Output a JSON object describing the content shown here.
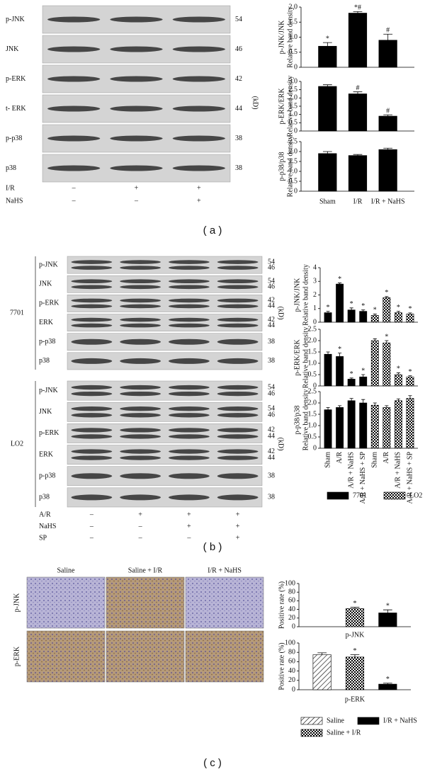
{
  "panels": {
    "a": {
      "caption": "( a )",
      "kd_unit": "(kD)",
      "rows": [
        {
          "name": "p-JNK",
          "kd": [
            "54"
          ]
        },
        {
          "name": "JNK",
          "kd": [
            "46"
          ]
        },
        {
          "name": "p-ERK",
          "kd": [
            "42"
          ]
        },
        {
          "name": "t- ERK",
          "kd": [
            "44"
          ]
        },
        {
          "name": "p-p38",
          "kd": [
            "38"
          ]
        },
        {
          "name": "p38",
          "kd": [
            "38"
          ]
        }
      ],
      "treatments": [
        {
          "name": "I/R",
          "signs": [
            "–",
            "+",
            "+"
          ]
        },
        {
          "name": "NaHS",
          "signs": [
            "–",
            "–",
            "+"
          ]
        }
      ]
    },
    "b": {
      "caption": "( b )",
      "kd_unit": "(kD)",
      "groups": [
        {
          "name": "7701",
          "rows": [
            {
              "name": "p-JNK",
              "kd": [
                "54",
                "46"
              ]
            },
            {
              "name": "JNK",
              "kd": [
                "54",
                "46"
              ]
            },
            {
              "name": "p-ERK",
              "kd": [
                "42",
                "44"
              ]
            },
            {
              "name": "ERK",
              "kd": [
                "42",
                "44"
              ]
            },
            {
              "name": "p-p38",
              "kd": [
                "38"
              ]
            },
            {
              "name": "p38",
              "kd": [
                "38"
              ]
            }
          ]
        },
        {
          "name": "LO2",
          "rows": [
            {
              "name": "p-JNK",
              "kd": [
                "54",
                "46"
              ]
            },
            {
              "name": "JNK",
              "kd": [
                "54",
                "46"
              ]
            },
            {
              "name": "p-ERK",
              "kd": [
                "42",
                "44"
              ]
            },
            {
              "name": "ERK",
              "kd": [
                "42",
                "44"
              ]
            },
            {
              "name": "p-p38",
              "kd": [
                "38"
              ]
            },
            {
              "name": "p38",
              "kd": [
                "38"
              ]
            }
          ]
        }
      ],
      "treatments": [
        {
          "name": "A/R",
          "signs": [
            "–",
            "+",
            "+",
            "+"
          ]
        },
        {
          "name": "NaHS",
          "signs": [
            "–",
            "–",
            "+",
            "+"
          ]
        },
        {
          "name": "SP",
          "signs": [
            "–",
            "–",
            "–",
            "+"
          ]
        }
      ]
    },
    "c": {
      "caption": "( c )",
      "columns": [
        "Saline",
        "Saline + I/R",
        "I/R + NaHS"
      ],
      "rows": [
        "p-JNK",
        "p-ERK"
      ]
    }
  },
  "chart_data": [
    {
      "type": "bar",
      "ylabel": [
        "p-JNK/JNK",
        "Relative band density"
      ],
      "ylim": [
        0,
        2
      ],
      "yticks": [
        0,
        0.5,
        {
          "value": 1,
          "label": "1.0"
        },
        1.5,
        {
          "value": 2,
          "label": "2.0"
        }
      ],
      "series": [
        {
          "pattern": "solid",
          "values": [
            0.7,
            1.8,
            0.9
          ],
          "errors": [
            0.12,
            0.05,
            0.2
          ],
          "annotations": [
            "*",
            "*#",
            "#"
          ]
        }
      ]
    },
    {
      "type": "bar",
      "ylabel": [
        "p-ERK/ERK",
        "Relative band density"
      ],
      "ylim": [
        0,
        3
      ],
      "yticks": [
        0,
        0.5,
        {
          "value": 1,
          "label": "1.0"
        },
        1.5,
        {
          "value": 2,
          "label": "2.0"
        },
        2.5,
        {
          "value": 3,
          "label": "3.0"
        }
      ],
      "series": [
        {
          "pattern": "solid",
          "values": [
            2.7,
            2.25,
            0.9
          ],
          "errors": [
            0.1,
            0.12,
            0.08
          ],
          "annotations": [
            null,
            "#",
            "#"
          ]
        }
      ]
    },
    {
      "type": "bar",
      "ylabel": [
        "p-p38/p38",
        "Relative band density"
      ],
      "ylim": [
        0,
        2.5
      ],
      "yticks": [
        0,
        0.5,
        {
          "value": 1,
          "label": "1.0"
        },
        1.5,
        {
          "value": 2,
          "label": "2.0"
        },
        2.5
      ],
      "categories": [
        "Sham",
        "I/R",
        "I/R + NaHS"
      ],
      "series": [
        {
          "pattern": "solid",
          "values": [
            1.9,
            1.8,
            2.1
          ],
          "errors": [
            0.1,
            0.05,
            0.07
          ]
        }
      ]
    },
    {
      "type": "bar",
      "ylabel": [
        "p-JNK/JNK",
        "Relative band density"
      ],
      "ylim": [
        0,
        4
      ],
      "yticks": [
        0,
        1,
        2,
        3,
        4
      ],
      "series": [
        {
          "pattern": "solid",
          "values": [
            0.7,
            2.8,
            0.9,
            0.8
          ],
          "errors": [
            0.1,
            0.08,
            0.15,
            0.1
          ],
          "annotations": [
            "*",
            "*",
            "*",
            "*"
          ]
        },
        {
          "pattern": "checker",
          "values": [
            0.5,
            1.8,
            0.7,
            0.6
          ],
          "errors": [
            0.1,
            0.08,
            0.1,
            0.08
          ],
          "annotations": [
            "*",
            "*",
            "*",
            "*"
          ]
        }
      ]
    },
    {
      "type": "bar",
      "ylabel": [
        "p-ERK/ERK",
        "Relative band density"
      ],
      "ylim": [
        0,
        2.5
      ],
      "yticks": [
        0,
        0.5,
        {
          "value": 1,
          "label": "1.0"
        },
        1.5,
        {
          "value": 2,
          "label": "2.0"
        },
        2.5
      ],
      "series": [
        {
          "pattern": "solid",
          "values": [
            1.4,
            1.3,
            0.3,
            0.4
          ],
          "errors": [
            0.1,
            0.15,
            0.05,
            0.1
          ],
          "annotations": [
            null,
            "*",
            "*",
            "*"
          ]
        },
        {
          "pattern": "checker",
          "values": [
            2.0,
            1.9,
            0.5,
            0.4
          ],
          "errors": [
            0.08,
            0.1,
            0.08,
            0.05
          ],
          "annotations": [
            null,
            "*",
            "*",
            "*"
          ]
        }
      ]
    },
    {
      "type": "bar",
      "ylabel": [
        "p-p38/p38",
        "Relative band density"
      ],
      "ylim": [
        0,
        2.5
      ],
      "yticks": [
        0,
        0.5,
        {
          "value": 1,
          "label": "1.0"
        },
        1.5,
        {
          "value": 2,
          "label": "2.0"
        },
        2.5
      ],
      "categories": [
        "Sham",
        "A/R",
        "A/R + NaHS",
        "A/R + NaHS + SP"
      ],
      "legend": true,
      "series": [
        {
          "name": "7701",
          "pattern": "solid",
          "values": [
            1.7,
            1.8,
            2.1,
            2.0
          ],
          "errors": [
            0.1,
            0.08,
            0.1,
            0.15
          ]
        },
        {
          "name": "LO2",
          "pattern": "checker",
          "values": [
            1.9,
            1.8,
            2.1,
            2.2
          ],
          "errors": [
            0.1,
            0.08,
            0.08,
            0.12
          ]
        }
      ]
    },
    {
      "type": "bar",
      "ylabel": [
        "Positive rate (%)"
      ],
      "xlabel": "p-JNK",
      "ylim": [
        0,
        100
      ],
      "yticks": [
        0,
        20,
        40,
        60,
        80,
        100
      ],
      "series": [
        {
          "pattern": "hatch",
          "values": [
            0
          ]
        },
        {
          "pattern": "checker",
          "values": [
            42
          ],
          "errors": [
            3
          ],
          "annotations": [
            "*"
          ]
        },
        {
          "pattern": "solid",
          "values": [
            32
          ],
          "errors": [
            7
          ],
          "annotations": [
            "*"
          ]
        }
      ]
    },
    {
      "type": "bar",
      "ylabel": [
        "Positive rate (%)"
      ],
      "xlabel": "p-ERK",
      "ylim": [
        0,
        100
      ],
      "yticks": [
        0,
        20,
        40,
        60,
        80,
        100
      ],
      "legend": true,
      "series": [
        {
          "name": "Saline",
          "pattern": "hatch",
          "values": [
            75
          ],
          "errors": [
            4
          ]
        },
        {
          "name": "Saline + I/R",
          "pattern": "checker",
          "values": [
            70
          ],
          "errors": [
            5
          ],
          "annotations": [
            "*"
          ]
        },
        {
          "name": "I/R + NaHS",
          "pattern": "solid",
          "values": [
            12
          ],
          "errors": [
            2
          ],
          "annotations": [
            "*"
          ]
        }
      ]
    }
  ]
}
